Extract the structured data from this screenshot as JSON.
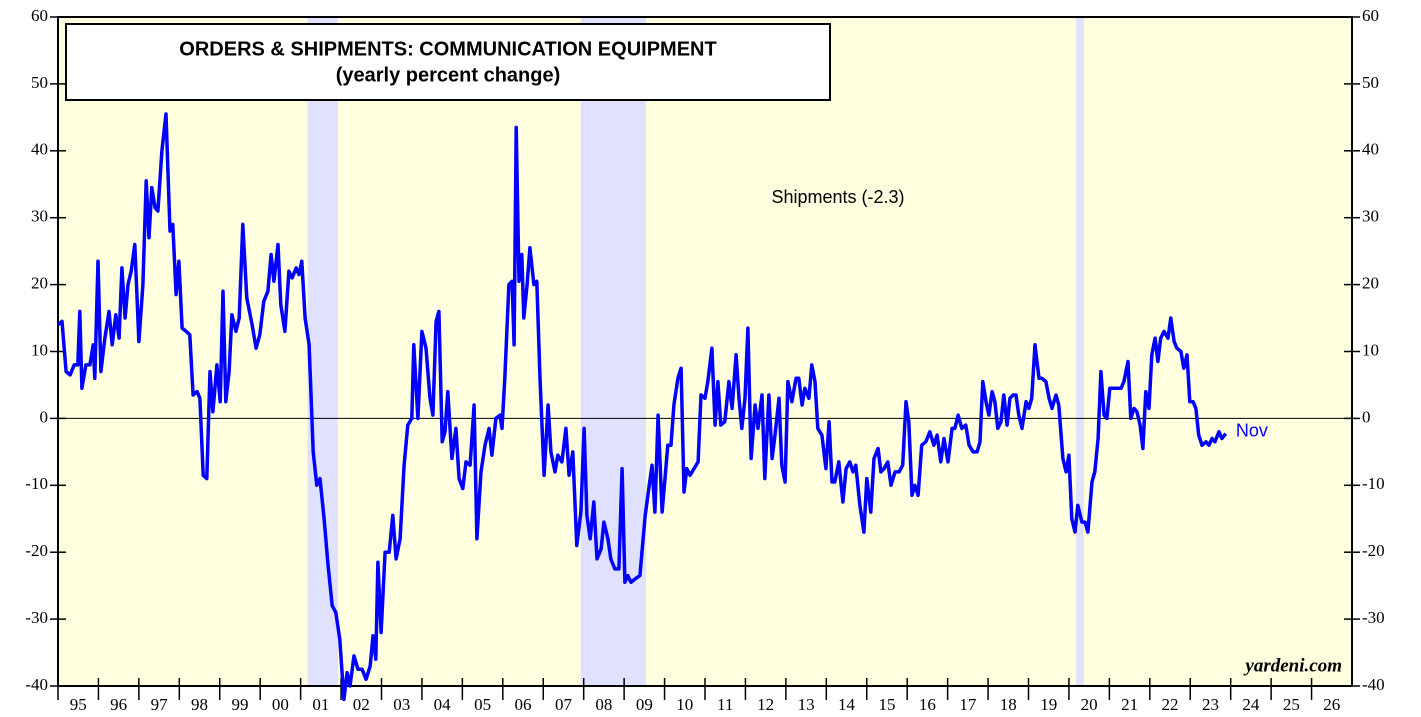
{
  "chart_data": {
    "type": "line",
    "title": "ORDERS & SHIPMENTS: COMMUNICATION EQUIPMENT",
    "subtitle": "(yearly percent change)",
    "end_label": "Nov",
    "source": "yardeni.com",
    "xlim": [
      1995,
      2027
    ],
    "xticks": [
      {
        "value": 1995,
        "label": "95"
      },
      {
        "value": 1996,
        "label": "96"
      },
      {
        "value": 1997,
        "label": "97"
      },
      {
        "value": 1998,
        "label": "98"
      },
      {
        "value": 1999,
        "label": "99"
      },
      {
        "value": 2000,
        "label": "00"
      },
      {
        "value": 2001,
        "label": "01"
      },
      {
        "value": 2002,
        "label": "02"
      },
      {
        "value": 2003,
        "label": "03"
      },
      {
        "value": 2004,
        "label": "04"
      },
      {
        "value": 2005,
        "label": "05"
      },
      {
        "value": 2006,
        "label": "06"
      },
      {
        "value": 2007,
        "label": "07"
      },
      {
        "value": 2008,
        "label": "08"
      },
      {
        "value": 2009,
        "label": "09"
      },
      {
        "value": 2010,
        "label": "10"
      },
      {
        "value": 2011,
        "label": "11"
      },
      {
        "value": 2012,
        "label": "12"
      },
      {
        "value": 2013,
        "label": "13"
      },
      {
        "value": 2014,
        "label": "14"
      },
      {
        "value": 2015,
        "label": "15"
      },
      {
        "value": 2016,
        "label": "16"
      },
      {
        "value": 2017,
        "label": "17"
      },
      {
        "value": 2018,
        "label": "18"
      },
      {
        "value": 2019,
        "label": "19"
      },
      {
        "value": 2020,
        "label": "20"
      },
      {
        "value": 2021,
        "label": "21"
      },
      {
        "value": 2022,
        "label": "22"
      },
      {
        "value": 2023,
        "label": "23"
      },
      {
        "value": 2024,
        "label": "24"
      },
      {
        "value": 2025,
        "label": "25"
      },
      {
        "value": 2026,
        "label": "26"
      }
    ],
    "ylim": [
      -40,
      60
    ],
    "yticks": [
      -40,
      -30,
      -20,
      -10,
      0,
      10,
      20,
      30,
      40,
      50,
      60
    ],
    "y2lim": [
      -40,
      60
    ],
    "y2ticks": [
      -40,
      -30,
      -20,
      -10,
      0,
      10,
      20,
      30,
      40,
      50,
      60
    ],
    "zero_line": true,
    "background_color": "#ffffe0",
    "shaded_ranges": [
      [
        2001.17,
        2001.92
      ],
      [
        2007.93,
        2009.54
      ],
      [
        2020.17,
        2020.37
      ]
    ],
    "shade_color": "#e0e0ff",
    "series": [
      {
        "name": "Shipments (-2.3)",
        "color": "#0000ff",
        "x": [
          1995.0,
          1995.1,
          1995.2,
          1995.3,
          1995.4,
          1995.49,
          1995.54,
          1995.59,
          1995.69,
          1995.79,
          1995.87,
          1995.91,
          1995.99,
          1996.06,
          1996.16,
          1996.26,
          1996.34,
          1996.43,
          1996.51,
          1996.58,
          1996.66,
          1996.73,
          1996.81,
          1996.9,
          1997.0,
          1997.1,
          1997.18,
          1997.25,
          1997.32,
          1997.4,
          1997.47,
          1997.57,
          1997.67,
          1997.77,
          1997.84,
          1997.92,
          1997.99,
          1998.07,
          1998.17,
          1998.26,
          1998.34,
          1998.44,
          1998.51,
          1998.59,
          1998.68,
          1998.76,
          1998.83,
          1998.93,
          1999.01,
          1999.08,
          1999.15,
          1999.23,
          1999.3,
          1999.4,
          1999.48,
          1999.57,
          1999.67,
          1999.8,
          1999.9,
          1999.99,
          2000.09,
          2000.19,
          2000.27,
          2000.34,
          2000.44,
          2000.51,
          2000.61,
          2000.71,
          2000.79,
          2000.89,
          2000.96,
          2001.03,
          2001.11,
          2001.21,
          2001.31,
          2001.4,
          2001.48,
          2001.58,
          2001.68,
          2001.78,
          2001.87,
          2001.97,
          2002.07,
          2002.15,
          2002.22,
          2002.32,
          2002.42,
          2002.52,
          2002.62,
          2002.72,
          2002.79,
          2002.86,
          2002.91,
          2002.99,
          2003.09,
          2003.19,
          2003.28,
          2003.36,
          2003.46,
          2003.56,
          2003.65,
          2003.75,
          2003.8,
          2003.9,
          2004.0,
          2004.1,
          2004.2,
          2004.27,
          2004.35,
          2004.42,
          2004.5,
          2004.57,
          2004.64,
          2004.74,
          2004.84,
          2004.92,
          2005.01,
          2005.09,
          2005.19,
          2005.29,
          2005.36,
          2005.46,
          2005.56,
          2005.66,
          2005.73,
          2005.83,
          2005.93,
          2005.98,
          2006.05,
          2006.15,
          2006.23,
          2006.28,
          2006.33,
          2006.4,
          2006.47,
          2006.52,
          2006.6,
          2006.67,
          2006.77,
          2006.84,
          2006.92,
          2007.02,
          2007.12,
          2007.19,
          2007.29,
          2007.36,
          2007.46,
          2007.56,
          2007.64,
          2007.73,
          2007.83,
          2007.93,
          2008.01,
          2008.08,
          2008.16,
          2008.25,
          2008.33,
          2008.43,
          2008.5,
          2008.6,
          2008.67,
          2008.77,
          2008.87,
          2008.95,
          2009.02,
          2009.09,
          2009.17,
          2009.27,
          2009.39,
          2009.52,
          2009.61,
          2009.69,
          2009.76,
          2009.84,
          2009.94,
          2010.01,
          2010.08,
          2010.16,
          2010.23,
          2010.33,
          2010.41,
          2010.48,
          2010.55,
          2010.63,
          2010.73,
          2010.83,
          2010.9,
          2011.0,
          2011.07,
          2011.17,
          2011.25,
          2011.32,
          2011.39,
          2011.49,
          2011.59,
          2011.67,
          2011.77,
          2011.84,
          2011.91,
          2011.99,
          2012.06,
          2012.14,
          2012.24,
          2012.31,
          2012.41,
          2012.48,
          2012.58,
          2012.66,
          2012.73,
          2012.83,
          2012.9,
          2012.98,
          2013.05,
          2013.15,
          2013.25,
          2013.32,
          2013.4,
          2013.47,
          2013.57,
          2013.64,
          2013.72,
          2013.79,
          2013.89,
          2013.99,
          2014.07,
          2014.14,
          2014.21,
          2014.31,
          2014.41,
          2014.49,
          2014.58,
          2014.66,
          2014.73,
          2014.83,
          2014.93,
          2015.0,
          2015.1,
          2015.18,
          2015.28,
          2015.35,
          2015.43,
          2015.52,
          2015.6,
          2015.7,
          2015.8,
          2015.89,
          2015.97,
          2016.04,
          2016.12,
          2016.19,
          2016.27,
          2016.36,
          2016.46,
          2016.56,
          2016.66,
          2016.74,
          2016.83,
          2016.91,
          2017.01,
          2017.11,
          2017.18,
          2017.26,
          2017.35,
          2017.45,
          2017.53,
          2017.63,
          2017.73,
          2017.8,
          2017.87,
          2017.95,
          2018.02,
          2018.1,
          2018.17,
          2018.24,
          2018.32,
          2018.39,
          2018.47,
          2018.54,
          2018.62,
          2018.69,
          2018.76,
          2018.84,
          2018.94,
          2019.01,
          2019.08,
          2019.16,
          2019.26,
          2019.33,
          2019.43,
          2019.51,
          2019.58,
          2019.68,
          2019.75,
          2019.85,
          2019.93,
          2020.0,
          2020.07,
          2020.15,
          2020.22,
          2020.32,
          2020.4,
          2020.47,
          2020.57,
          2020.64,
          2020.72,
          2020.79,
          2020.87,
          2020.94,
          2021.01,
          2021.09,
          2021.19,
          2021.29,
          2021.36,
          2021.46,
          2021.53,
          2021.61,
          2021.68,
          2021.76,
          2021.83,
          2021.9,
          2021.98,
          2022.05,
          2022.13,
          2022.2,
          2022.27,
          2022.35,
          2022.45,
          2022.52,
          2022.6,
          2022.67,
          2022.77,
          2022.84,
          2022.92,
          2022.99,
          2023.07,
          2023.14,
          2023.21,
          2023.29,
          2023.39,
          2023.46,
          2023.54,
          2023.61,
          2023.71,
          2023.78,
          2023.88
        ],
        "values": [
          14,
          14.5,
          7,
          6.5,
          8,
          8,
          16,
          4.5,
          8,
          8,
          11,
          6,
          23.5,
          7,
          12,
          16,
          11,
          15.5,
          12,
          22.5,
          15,
          20,
          22,
          26,
          11.5,
          20,
          35.5,
          27,
          34.5,
          31.5,
          31,
          40,
          45.5,
          28,
          29,
          18.5,
          23.5,
          13.5,
          13,
          12.5,
          3.5,
          4,
          3,
          -8.5,
          -9,
          7,
          1,
          8,
          2.5,
          19,
          2.5,
          7,
          15.5,
          13,
          15,
          29,
          18,
          14,
          10.5,
          12.5,
          17.5,
          19,
          24.5,
          20.5,
          26,
          17,
          13,
          22,
          21,
          22.5,
          21.5,
          23.5,
          15,
          11,
          -5,
          -10,
          -9,
          -15,
          -22,
          -28,
          -29,
          -33,
          -42,
          -38,
          -40,
          -35.5,
          -37.5,
          -37.5,
          -39,
          -37,
          -32.5,
          -36,
          -21.5,
          -32,
          -20,
          -20,
          -14.5,
          -21,
          -18,
          -7,
          -1,
          0,
          11,
          0,
          13,
          10.5,
          3,
          0.5,
          14.5,
          16,
          -3.5,
          -2,
          4,
          -6,
          -1.5,
          -9,
          -10.5,
          -6.5,
          -7,
          2,
          -18,
          -8,
          -4,
          -1.5,
          -5.5,
          0,
          0.5,
          -1.5,
          6,
          20,
          20.5,
          11,
          43.5,
          20.5,
          24.5,
          15,
          20,
          25.5,
          20,
          20.5,
          6,
          -8.5,
          2,
          -5,
          -8,
          -5.5,
          -6.5,
          -1.5,
          -8.5,
          -5,
          -19,
          -14,
          -1.5,
          -14.5,
          -18,
          -12.5,
          -21,
          -19.5,
          -15.5,
          -18,
          -21,
          -22.5,
          -22.5,
          -7.5,
          -24.5,
          -23.5,
          -24.5,
          -24,
          -23.5,
          -14.5,
          -10.5,
          -7,
          -14,
          0.5,
          -14,
          -9,
          -4,
          -4,
          2,
          6,
          7.5,
          -11,
          -7.5,
          -8.5,
          -7.5,
          -6.5,
          3.5,
          3,
          5.5,
          10.5,
          -1,
          5.5,
          -1,
          -0.5,
          5.5,
          1.5,
          9.5,
          3,
          -1.5,
          3,
          13.5,
          -6,
          2,
          -1.5,
          3.5,
          -9,
          3.5,
          -6,
          -2.5,
          3,
          -7,
          -9.5,
          5.5,
          2.5,
          6,
          6,
          2,
          4.5,
          3,
          8,
          5.5,
          -1.5,
          -2.5,
          -7.5,
          -0.5,
          -9.5,
          -9.5,
          -6.5,
          -12.5,
          -7.5,
          -6.5,
          -8,
          -7,
          -13,
          -17,
          -9,
          -14,
          -6,
          -4.5,
          -8,
          -7.5,
          -6.5,
          -10,
          -8,
          -8,
          -7,
          2.5,
          -0.5,
          -11.5,
          -10,
          -11.5,
          -4,
          -3.5,
          -2,
          -4,
          -2.5,
          -6.5,
          -3,
          -6.5,
          -1.5,
          -1.5,
          0.5,
          -1.5,
          -1,
          -4,
          -5,
          -5,
          -3.5,
          5.5,
          2.5,
          0.5,
          4,
          2.5,
          -1.5,
          -0.5,
          3.5,
          -1,
          3,
          3.5,
          3.5,
          0.5,
          -1.5,
          2.5,
          1.5,
          3,
          11,
          6,
          6,
          5.5,
          3,
          1.5,
          3.5,
          2,
          -6,
          -8,
          -5.5,
          -15,
          -17,
          -13,
          -15.5,
          -15.5,
          -17,
          -9.5,
          -8,
          -3,
          7,
          0.5,
          0,
          4.5,
          4.5,
          4.5,
          4.5,
          5.5,
          8.5,
          0,
          1.5,
          1,
          -1,
          -4.5,
          4,
          1.5,
          9.5,
          12,
          8.5,
          12,
          13,
          12,
          15,
          11.5,
          10.5,
          10,
          7.5,
          9.5,
          2.5,
          2.5,
          1.5,
          -2.5,
          -4,
          -3.5,
          -4,
          -3,
          -3.5,
          -2,
          -3,
          -2.3
        ]
      }
    ]
  }
}
